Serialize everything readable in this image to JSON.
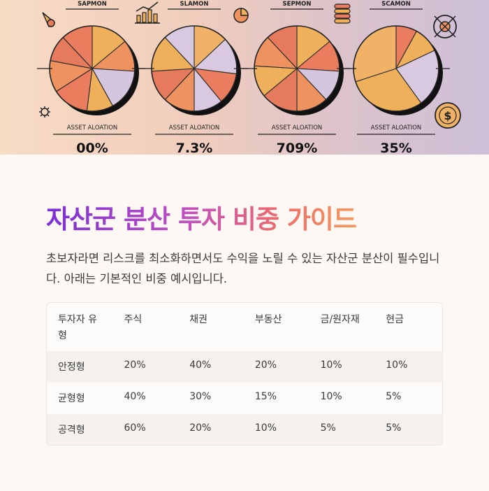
{
  "chart_data": [
    {
      "type": "pie",
      "title": "SAPMON",
      "label": "ASSET ALOATION",
      "value": "00%",
      "slices": [
        14,
        12,
        16,
        10,
        14,
        12,
        10,
        12
      ],
      "colors": [
        "#efb05c",
        "#ee9360",
        "#d5c6df",
        "#efb05c",
        "#ea7d5d",
        "#ee9360",
        "#e67a5c",
        "#ea7d5d"
      ]
    },
    {
      "type": "pie",
      "title": "SLAMON",
      "label": "ASSET ALOATION",
      "value": "7.3%",
      "slices": [
        13,
        14,
        12,
        11,
        12,
        12,
        14,
        12
      ],
      "colors": [
        "#f0b266",
        "#d8c8e0",
        "#ea7d5d",
        "#d8c8e0",
        "#ee9360",
        "#e67a5c",
        "#efb05c",
        "#d8c8e0"
      ]
    },
    {
      "type": "pie",
      "title": "SEPMON",
      "label": "ASSET ALOATION",
      "value": "709%",
      "slices": [
        14,
        12,
        12,
        12,
        14,
        12,
        12,
        12
      ],
      "colors": [
        "#efb05c",
        "#ea7d5d",
        "#d5c6df",
        "#ee9360",
        "#e67a5c",
        "#efb05c",
        "#ee9360",
        "#e67a5c"
      ]
    },
    {
      "type": "pie",
      "title": "SCAMON",
      "label": "ASSET ALOATION",
      "value": "35%",
      "slices": [
        8,
        10,
        22,
        30,
        30
      ],
      "colors": [
        "#ea7d5d",
        "#efb05c",
        "#d8c8e0",
        "#efb05c",
        "#f0b266"
      ]
    }
  ],
  "article": {
    "title": "자산군 분산 투자 비중 가이드",
    "intro": "초보자라면 리스크를 최소화하면서도 수익을 노릴 수 있는 자산군 분산이 필수입니다. 아래는 기본적인 비중 예시입니다."
  },
  "table": {
    "headers": [
      "투자자 유형",
      "주식",
      "채권",
      "부동산",
      "금/원자재",
      "현금"
    ],
    "rows": [
      [
        "안정형",
        "20%",
        "40%",
        "20%",
        "10%",
        "10%"
      ],
      [
        "균형형",
        "40%",
        "30%",
        "15%",
        "10%",
        "5%"
      ],
      [
        "공격형",
        "60%",
        "20%",
        "10%",
        "5%",
        "5%"
      ]
    ]
  },
  "icons": [
    "garlic-icon",
    "bar-chart-icon",
    "pie-chart-icon",
    "coin-stack-icon",
    "target-icon",
    "dollar-coin-icon",
    "gear-icon"
  ]
}
